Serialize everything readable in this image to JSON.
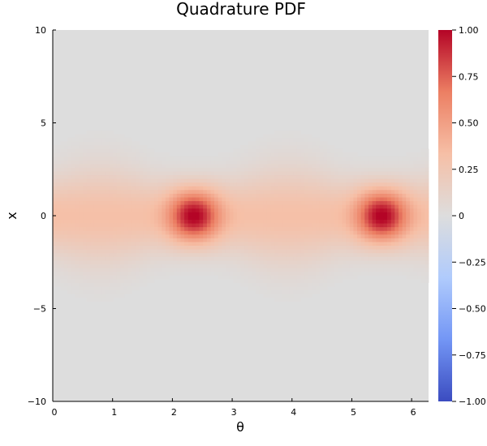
{
  "chart_data": {
    "type": "heatmap",
    "title": "Quadrature PDF",
    "xlabel": "θ",
    "ylabel": "x",
    "xlim": [
      0,
      6.283
    ],
    "ylim": [
      -10,
      10
    ],
    "x_ticks": [
      0,
      1,
      2,
      3,
      4,
      5,
      6
    ],
    "x_tick_labels": [
      "0",
      "1",
      "2",
      "3",
      "4",
      "5",
      "6"
    ],
    "y_ticks": [
      -10,
      -5,
      0,
      5,
      10
    ],
    "y_tick_labels": [
      "−10",
      "−5",
      "0",
      "5",
      "10"
    ],
    "colorbar": {
      "colormap": "coolwarm",
      "clim": [
        -1,
        1
      ],
      "ticks": [
        -1,
        -0.75,
        -0.5,
        -0.25,
        0,
        0.25,
        0.5,
        0.75,
        1
      ],
      "tick_labels": [
        "−1.00",
        "−0.75",
        "−0.50",
        "−0.25",
        "0",
        "0.25",
        "0.50",
        "0.75",
        "1.00"
      ],
      "stops": [
        "#3b4cc0",
        "#7396f5",
        "#b0cbfc",
        "#dddddd",
        "#f6bfa6",
        "#ec7f63",
        "#b40426"
      ]
    },
    "features": {
      "band_center_x": 0,
      "peaks": [
        {
          "theta": 2.36,
          "x": 0,
          "value": 1.0
        },
        {
          "theta": 5.5,
          "x": 0,
          "value": 1.0
        }
      ],
      "broad_regions": [
        {
          "theta": 0.8,
          "x": 0,
          "value": 0.35
        },
        {
          "theta": 3.9,
          "x": 0,
          "value": 0.35
        }
      ]
    }
  }
}
